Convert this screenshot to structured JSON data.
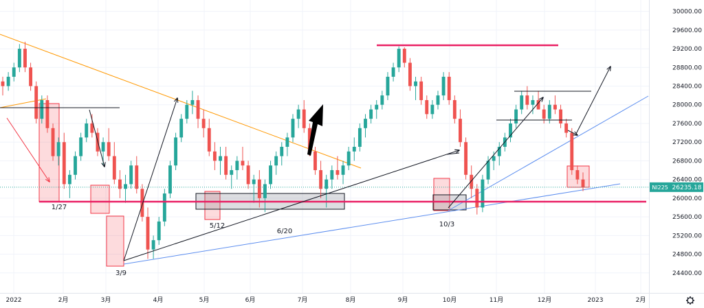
{
  "chart_data": {
    "type": "candlestick",
    "symbol_tag": "NI225",
    "current_price_label": "26235.18",
    "current_price": 26235.18,
    "y_ticks": [
      "30000.00",
      "29600.00",
      "29200.00",
      "28800.00",
      "28400.00",
      "28000.00",
      "27600.00",
      "27200.00",
      "26800.00",
      "26400.00",
      "26000.00",
      "25600.00",
      "25200.00",
      "24800.00",
      "24400.00"
    ],
    "y_tick_values": [
      30000,
      29600,
      29200,
      28800,
      28400,
      28000,
      27600,
      27200,
      26800,
      26400,
      26000,
      25600,
      25200,
      24800,
      24400
    ],
    "x_ticks": [
      "2022",
      "2月",
      "3月",
      "4月",
      "5月",
      "6月",
      "7月",
      "8月",
      "9月",
      "10月",
      "11月",
      "12月",
      "2023",
      "2月"
    ],
    "ylim": [
      24000,
      30200
    ],
    "grid": true,
    "colors": {
      "up": "#26a69a",
      "down": "#ef5350",
      "support": "#e91e63",
      "trend": "#ff9800",
      "trendline_blue": "#5b8def",
      "box_gray": "#9e9e9e",
      "price_tag": "#26a69a"
    },
    "annotations": [
      "1/27",
      "5/12",
      "6/20",
      "3/9",
      "10/3"
    ],
    "horizontal_levels": [
      {
        "value": 25980,
        "color": "#e91e63"
      },
      {
        "value": 29230,
        "color": "#e91e63"
      },
      {
        "value": 27930,
        "color": "#131722"
      },
      {
        "value": 28260,
        "color": "#131722"
      },
      {
        "value": 27660,
        "color": "#131722"
      }
    ],
    "ohlc_approx": [
      [
        28500,
        28600,
        28200,
        28400
      ],
      [
        28400,
        28700,
        28300,
        28600
      ],
      [
        28600,
        28900,
        28500,
        28800
      ],
      [
        28800,
        29300,
        28700,
        29200
      ],
      [
        29200,
        29350,
        28700,
        28800
      ],
      [
        28800,
        28900,
        28300,
        28400
      ],
      [
        28400,
        28500,
        27600,
        27700
      ],
      [
        27700,
        28200,
        27600,
        28100
      ],
      [
        28100,
        28200,
        27400,
        27500
      ],
      [
        27500,
        27600,
        26800,
        26900
      ],
      [
        26900,
        27300,
        26700,
        27200
      ],
      [
        27200,
        27400,
        26200,
        26300
      ],
      [
        26300,
        26600,
        26000,
        26500
      ],
      [
        26500,
        27000,
        26400,
        26900
      ],
      [
        26900,
        27400,
        26800,
        27300
      ],
      [
        27300,
        27700,
        27200,
        27600
      ],
      [
        27600,
        27800,
        27300,
        27400
      ],
      [
        27400,
        27500,
        26900,
        27000
      ],
      [
        27000,
        27300,
        26700,
        27200
      ],
      [
        27200,
        27500,
        26800,
        26900
      ],
      [
        26900,
        27200,
        26300,
        26400
      ],
      [
        26400,
        26600,
        26000,
        26200
      ],
      [
        26200,
        26500,
        25900,
        26300
      ],
      [
        26300,
        26800,
        26200,
        26700
      ],
      [
        26700,
        26900,
        26100,
        26200
      ],
      [
        26200,
        26300,
        25500,
        25600
      ],
      [
        25600,
        25800,
        24700,
        24900
      ],
      [
        24900,
        25200,
        24700,
        25100
      ],
      [
        25100,
        25600,
        25000,
        25500
      ],
      [
        25500,
        26200,
        25400,
        26100
      ],
      [
        26100,
        26800,
        26000,
        26700
      ],
      [
        26700,
        27400,
        26600,
        27300
      ],
      [
        27300,
        27800,
        27200,
        27700
      ],
      [
        27700,
        28100,
        27600,
        28000
      ],
      [
        28000,
        28300,
        27800,
        28100
      ],
      [
        28100,
        28200,
        27500,
        27700
      ],
      [
        27700,
        27900,
        27300,
        27500
      ],
      [
        27500,
        27700,
        26900,
        27000
      ],
      [
        27000,
        27200,
        26600,
        26800
      ],
      [
        26800,
        27100,
        26500,
        26900
      ],
      [
        26900,
        27100,
        26400,
        26500
      ],
      [
        26500,
        26700,
        26200,
        26600
      ],
      [
        26600,
        26900,
        26400,
        26800
      ],
      [
        26800,
        27100,
        26600,
        26700
      ],
      [
        26700,
        26800,
        26200,
        26300
      ],
      [
        26300,
        26500,
        25900,
        26400
      ],
      [
        26400,
        26600,
        25800,
        26000
      ],
      [
        26000,
        26400,
        25700,
        26300
      ],
      [
        26300,
        26800,
        26200,
        26700
      ],
      [
        26700,
        27000,
        26500,
        26900
      ],
      [
        26900,
        27200,
        26700,
        27100
      ],
      [
        27100,
        27400,
        26900,
        27300
      ],
      [
        27300,
        27800,
        27200,
        27700
      ],
      [
        27700,
        28000,
        27500,
        27900
      ],
      [
        27900,
        28100,
        27400,
        27500
      ],
      [
        27500,
        27600,
        26900,
        27000
      ],
      [
        27000,
        27100,
        26500,
        26600
      ],
      [
        26600,
        26800,
        26000,
        26200
      ],
      [
        26200,
        26500,
        25800,
        26400
      ],
      [
        26400,
        26700,
        26200,
        26600
      ],
      [
        26600,
        26900,
        26400,
        26500
      ],
      [
        26500,
        26800,
        26300,
        26700
      ],
      [
        26700,
        27100,
        26600,
        27000
      ],
      [
        27000,
        27300,
        26800,
        27100
      ],
      [
        27100,
        27600,
        27000,
        27500
      ],
      [
        27500,
        27800,
        27300,
        27700
      ],
      [
        27700,
        28000,
        27600,
        27900
      ],
      [
        27900,
        28100,
        27700,
        28000
      ],
      [
        28000,
        28300,
        27900,
        28200
      ],
      [
        28200,
        28700,
        28100,
        28600
      ],
      [
        28600,
        28900,
        28500,
        28800
      ],
      [
        28800,
        29250,
        28700,
        29200
      ],
      [
        29200,
        29230,
        28800,
        28900
      ],
      [
        28900,
        29000,
        28300,
        28400
      ],
      [
        28400,
        28600,
        28100,
        28500
      ],
      [
        28500,
        28600,
        28000,
        28100
      ],
      [
        28100,
        28200,
        27700,
        27800
      ],
      [
        27800,
        28100,
        27700,
        28000
      ],
      [
        28000,
        28300,
        27900,
        28200
      ],
      [
        28200,
        28700,
        28100,
        28600
      ],
      [
        28600,
        28700,
        28000,
        28100
      ],
      [
        28100,
        28200,
        27600,
        27700
      ],
      [
        27700,
        27900,
        27100,
        27200
      ],
      [
        27200,
        27300,
        26400,
        26500
      ],
      [
        26500,
        26700,
        26000,
        26200
      ],
      [
        26200,
        26300,
        25650,
        25800
      ],
      [
        25800,
        26500,
        25700,
        26400
      ],
      [
        26400,
        26900,
        26300,
        26800
      ],
      [
        26800,
        27000,
        26600,
        26900
      ],
      [
        26900,
        27200,
        26700,
        27100
      ],
      [
        27100,
        27400,
        27000,
        27300
      ],
      [
        27300,
        27700,
        27200,
        27600
      ],
      [
        27600,
        28000,
        27500,
        27900
      ],
      [
        27900,
        28300,
        27800,
        28200
      ],
      [
        28200,
        28400,
        27900,
        28000
      ],
      [
        28000,
        28200,
        27800,
        28100
      ],
      [
        28100,
        28300,
        27900,
        27900
      ],
      [
        27900,
        28000,
        27600,
        27700
      ],
      [
        27700,
        28100,
        27600,
        28000
      ],
      [
        28000,
        28200,
        27800,
        27900
      ],
      [
        27900,
        28000,
        27500,
        27600
      ],
      [
        27600,
        27700,
        27300,
        27400
      ],
      [
        27400,
        27500,
        26500,
        26600
      ],
      [
        26600,
        26700,
        26300,
        26400
      ],
      [
        26400,
        26550,
        26150,
        26235
      ]
    ]
  }
}
